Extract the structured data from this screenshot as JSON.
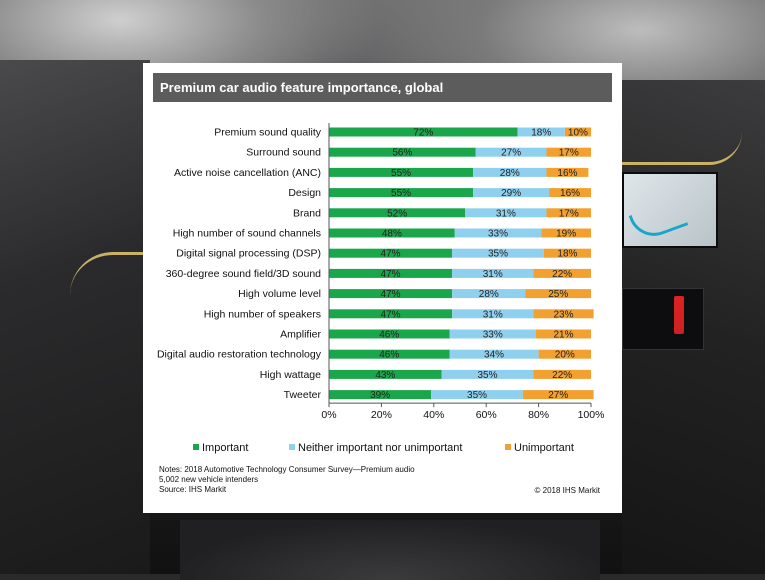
{
  "title": "Premium car audio feature importance, global",
  "notes": {
    "line1": "Notes: 2018 Automotive Technology Consumer Survey—Premium audio",
    "line2": "5,002 new vehicle intenders",
    "line3": "Source: IHS Markit"
  },
  "copyright": "© 2018 IHS Markit",
  "colors": {
    "important": "#1aa64a",
    "neither": "#8fd0ee",
    "unimportant": "#f2a030",
    "title_bar": "#5c5c5c"
  },
  "legend": [
    "Important",
    "Neither important nor unimportant",
    "Unimportant"
  ],
  "chart_data": {
    "type": "bar",
    "orientation": "horizontal",
    "stacked": true,
    "title": "Premium car audio feature importance, global",
    "categories": [
      "Premium sound quality",
      "Surround sound",
      "Active noise cancellation (ANC)",
      "Design",
      "Brand",
      "High number of sound channels",
      "Digital signal processing (DSP)",
      "360-degree sound field/3D sound",
      "High volume level",
      "High number of speakers",
      "Amplifier",
      "Digital audio restoration technology",
      "High wattage",
      "Tweeter"
    ],
    "series": [
      {
        "name": "Important",
        "values": [
          72,
          56,
          55,
          55,
          52,
          48,
          47,
          47,
          47,
          47,
          46,
          46,
          43,
          39
        ]
      },
      {
        "name": "Neither important nor unimportant",
        "values": [
          18,
          27,
          28,
          29,
          31,
          33,
          35,
          31,
          28,
          31,
          33,
          34,
          35,
          35
        ]
      },
      {
        "name": "Unimportant",
        "values": [
          10,
          17,
          16,
          16,
          17,
          19,
          18,
          22,
          25,
          23,
          21,
          20,
          22,
          27
        ]
      }
    ],
    "xlim": [
      0,
      100
    ],
    "xticks": [
      "0%",
      "20%",
      "40%",
      "60%",
      "80%",
      "100%"
    ],
    "grid": false,
    "legend_position": "bottom"
  }
}
